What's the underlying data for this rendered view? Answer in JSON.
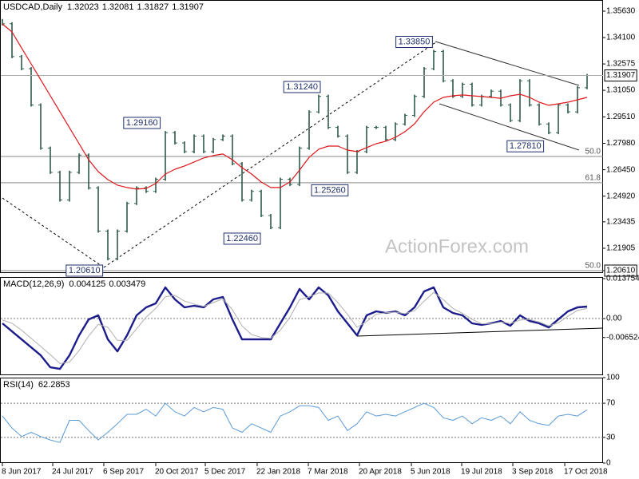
{
  "chart_data": [
    {
      "type": "price",
      "title": "USDCAD,Daily",
      "header_values": [
        1.32023,
        1.32081,
        1.31827,
        1.31907
      ],
      "watermark": "ActionForex.com",
      "xlim": [
        0,
        62.667
      ],
      "xticks": [
        {
          "value": 0,
          "label": "8 Jun 2017"
        },
        {
          "value": 5.25,
          "label": "24 Jul 2017"
        },
        {
          "value": 10.58,
          "label": "6 Sep 2017"
        },
        {
          "value": 16,
          "label": "20 Oct 2017"
        },
        {
          "value": 21.17,
          "label": "5 Dec 2017"
        },
        {
          "value": 26.58,
          "label": "22 Jan 2018"
        },
        {
          "value": 31.92,
          "label": "7 Mar 2018"
        },
        {
          "value": 37.25,
          "label": "20 Apr 2018"
        },
        {
          "value": 42.67,
          "label": "5 Jun 2018"
        },
        {
          "value": 47.92,
          "label": "19 Jul 2018"
        },
        {
          "value": 53.25,
          "label": "3 Sep 2018"
        },
        {
          "value": 58.67,
          "label": "17 Oct 2018"
        }
      ],
      "ylim": [
        1.20471,
        1.36277
      ],
      "yticks": [
        {
          "value": 1.3563,
          "label": "1.35630"
        },
        {
          "value": 1.341,
          "label": "1.34100"
        },
        1.32575,
        {
          "value": 1.3105,
          "label": "1.31050"
        },
        {
          "value": 1.2951,
          "label": "1.29510"
        },
        {
          "value": 1.2798,
          "label": "1.27980"
        },
        {
          "value": 1.2645,
          "label": "1.26450"
        },
        {
          "value": 1.2492,
          "label": "1.24920"
        },
        1.23435,
        1.21905,
        {
          "value": 1.2061,
          "label": "1.20610"
        }
      ],
      "levels": [
        {
          "value": 1.2722,
          "label": "50.0"
        },
        {
          "value": 1.257,
          "label": "61.8"
        },
        {
          "value": 1.2061,
          "label": "50.0"
        }
      ],
      "annotations": [
        {
          "value": 1.3385,
          "label": "1.33850",
          "x": 45.2
        },
        {
          "value": 1.3124,
          "label": "1.31240",
          "x": 33.5
        },
        {
          "value": 1.2916,
          "label": "1.29160",
          "x": 16.8
        },
        {
          "value": 1.2781,
          "label": "1.27810",
          "x": 56.8
        },
        {
          "value": 1.2526,
          "label": "1.25260",
          "x": 36.4
        },
        {
          "value": 1.2246,
          "label": "1.22460",
          "x": 27.25
        },
        {
          "value": 1.2061,
          "label": "1.20610",
          "x": 10.8
        }
      ],
      "series": [
        {
          "style": "bars",
          "color": "#2f5a4a",
          "values": [
            1.349,
            1.33,
            1.323,
            1.302,
            1.277,
            1.263,
            1.247,
            1.263,
            1.273,
            1.254,
            1.229,
            1.213,
            1.229,
            1.245,
            1.254,
            1.252,
            1.259,
            1.286,
            1.28,
            1.275,
            1.284,
            1.275,
            1.282,
            1.284,
            1.268,
            1.247,
            1.252,
            1.238,
            1.231,
            1.259,
            1.256,
            1.277,
            1.298,
            1.307,
            1.289,
            1.284,
            1.263,
            1.275,
            1.289,
            1.289,
            1.282,
            1.291,
            1.296,
            1.307,
            1.323,
            1.333,
            1.316,
            1.307,
            1.314,
            1.302,
            1.307,
            1.31,
            1.302,
            1.293,
            1.316,
            1.302,
            1.291,
            1.286,
            1.302,
            1.298,
            1.312,
            1.31907
          ]
        },
        {
          "style": "line",
          "color": "#e0161b",
          "values": [
            1.3489,
            1.3443,
            1.335,
            1.3258,
            1.3166,
            1.3073,
            1.2981,
            1.2888,
            1.2796,
            1.2703,
            1.2634,
            1.2588,
            1.2556,
            1.2542,
            1.2533,
            1.2537,
            1.2565,
            1.262,
            1.2648,
            1.2667,
            1.269,
            1.2713,
            1.2727,
            1.2736,
            1.2703,
            1.2657,
            1.262,
            1.2574,
            1.2542,
            1.2542,
            1.2574,
            1.2643,
            1.2717,
            1.2764,
            1.2782,
            1.2782,
            1.2759,
            1.275,
            1.2773,
            1.2796,
            1.281,
            1.2833,
            1.2865,
            1.2911,
            1.2981,
            1.3036,
            1.3064,
            1.3073,
            1.3078,
            1.3073,
            1.3069,
            1.3064,
            1.3059,
            1.3073,
            1.3082,
            1.3064,
            1.3036,
            1.3018,
            1.3027,
            1.3036,
            1.305,
            1.3064
          ]
        }
      ]
    },
    {
      "type": "line",
      "title": "MACD(12,26,9)",
      "header_values": [
        0.004125,
        0.003479
      ],
      "xlim": [
        0,
        62.667
      ],
      "ylim": [
        -0.0195,
        0.0143
      ],
      "yticks": [
        0.013754,
        {
          "value": 0,
          "label": "0.00"
        },
        -0.006524
      ],
      "levels": [
        0
      ],
      "series": [
        {
          "color": "#1c1c8c",
          "width": 2.4,
          "values": [
            -0.00165,
            -0.0044,
            -0.00715,
            -0.0099,
            -0.01265,
            -0.01678,
            -0.01733,
            -0.01265,
            -0.00578,
            -0.00028,
            0.0011,
            -0.00715,
            -0.01128,
            -0.00578,
            0.0011,
            0.00385,
            0.00523,
            0.01073,
            0.0066,
            0.00385,
            0.0044,
            0.00385,
            0.0066,
            0.00743,
            -0.00028,
            -0.00715,
            -0.00715,
            -0.00715,
            -0.00715,
            -0.00165,
            0.00385,
            0.01018,
            0.0066,
            0.01073,
            0.00798,
            0.00248,
            -0.00165,
            -0.00578,
            0.0011,
            0.00248,
            0.00193,
            0.00248,
            0.0011,
            0.00385,
            0.00935,
            0.01073,
            0.00385,
            0.00193,
            0.0011,
            -0.00165,
            -0.0022,
            -0.00165,
            -0.00083,
            -0.00248,
            0.0011,
            -0.00083,
            -0.00165,
            -0.00303,
            -0.00028,
            0.00248,
            0.00385,
            0.004125
          ]
        },
        {
          "color": "#b0b0b0",
          "width": 1,
          "values": [
            -0.0005,
            -0.0016,
            -0.004,
            -0.0068,
            -0.0096,
            -0.0124,
            -0.0155,
            -0.015,
            -0.011,
            -0.006,
            -0.002,
            -0.003,
            -0.0075,
            -0.0075,
            -0.0035,
            0.0005,
            0.0035,
            0.0075,
            0.008,
            0.006,
            0.005,
            0.0042,
            0.0055,
            0.0068,
            0.003,
            -0.0025,
            -0.0055,
            -0.0065,
            -0.0068,
            -0.004,
            0.0005,
            0.0065,
            0.0075,
            0.0088,
            0.0088,
            0.0055,
            0.0015,
            -0.003,
            -0.001,
            0.0015,
            0.002,
            0.0022,
            0.0017,
            0.0027,
            0.006,
            0.009,
            0.0065,
            0.0035,
            0.0018,
            -0.0003,
            -0.0018,
            -0.0018,
            -0.0012,
            -0.0017,
            -0.0005,
            -0.0003,
            -0.0012,
            -0.0025,
            -0.0015,
            0.0008,
            0.0028,
            0.003479
          ]
        }
      ]
    },
    {
      "type": "line",
      "title": "RSI(14)",
      "header_values": [
        62.2853
      ],
      "xlim": [
        0,
        62.667
      ],
      "ylim": [
        0,
        100
      ],
      "yticks": [
        100,
        70,
        30,
        0
      ],
      "levels": [
        70,
        30
      ],
      "series": [
        {
          "color": "#5a9bd6",
          "width": 1,
          "values": [
            55,
            41,
            31,
            36,
            31,
            27,
            24,
            50,
            50,
            38,
            27,
            36,
            46,
            57,
            57,
            63,
            55,
            70,
            60,
            55,
            65,
            60,
            65,
            63,
            41,
            36,
            46,
            41,
            36,
            55,
            60,
            67,
            67,
            65,
            50,
            55,
            38,
            46,
            60,
            55,
            57,
            55,
            60,
            65,
            70,
            65,
            53,
            50,
            55,
            46,
            53,
            50,
            55,
            46,
            60,
            50,
            46,
            44,
            55,
            57,
            55,
            62.2853
          ]
        }
      ]
    }
  ]
}
